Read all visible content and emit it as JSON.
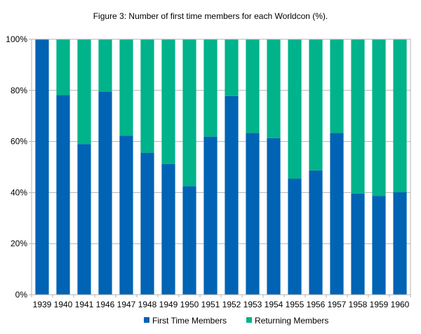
{
  "chart_data": {
    "type": "bar",
    "stacked": true,
    "title": "Figure 3: Number of first time members for each Worldcon (%).",
    "xlabel": "",
    "ylabel": "",
    "ylim": [
      0,
      100
    ],
    "y_ticks": [
      "0%",
      "20%",
      "40%",
      "60%",
      "80%",
      "100%"
    ],
    "grid": true,
    "legend_position": "bottom",
    "categories": [
      "1939",
      "1940",
      "1941",
      "1946",
      "1947",
      "1948",
      "1949",
      "1950",
      "1951",
      "1952",
      "1953",
      "1954",
      "1955",
      "1956",
      "1957",
      "1958",
      "1959",
      "1960"
    ],
    "series": [
      {
        "name": "First Time Members",
        "color": "#0063b4",
        "values": [
          100,
          78.2,
          59,
          79.5,
          62.3,
          55.6,
          51.2,
          42.5,
          61.9,
          77.8,
          63.3,
          61.3,
          45.5,
          48.7,
          63.3,
          39.6,
          38.7,
          40.1
        ]
      },
      {
        "name": "Returning Members",
        "color": "#00b38a",
        "values": [
          0,
          21.8,
          41,
          20.5,
          37.7,
          44.4,
          48.8,
          57.5,
          38.1,
          22.2,
          36.7,
          38.7,
          54.5,
          51.3,
          36.7,
          60.4,
          61.3,
          59.9
        ]
      }
    ]
  }
}
